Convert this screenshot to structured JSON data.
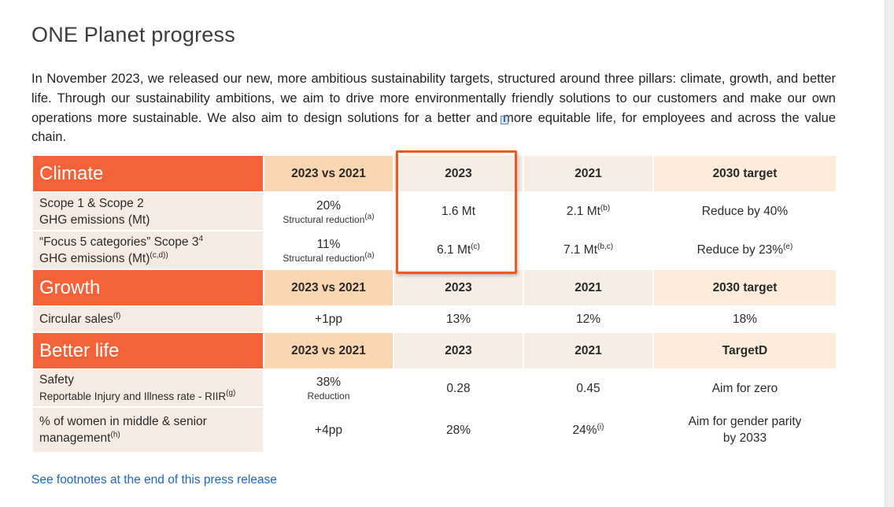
{
  "title": "ONE Planet progress",
  "intro": "In November 2023, we released our new, more ambitious sustainability targets, structured around three pillars: climate, growth, and better life. Through our sustainability ambitions, we aim to drive more environmentally friendly solutions to our customers and make our own operations more sustainable. We also aim to design solutions for a better and more equitable life, for employees and across the value chain.",
  "climate": {
    "section": "Climate",
    "headers": [
      "2023 vs 2021",
      "2023",
      "2021",
      "2030 target"
    ],
    "rows": [
      {
        "label1": "Scope 1 & Scope 2",
        "label2": "GHG emissions (Mt)",
        "label_sup": "",
        "label1_sup": "",
        "change": "20%",
        "change_note": "Structural reduction",
        "change_note_sup": "(a)",
        "y2023": "1.6 Mt",
        "y2023_sup": "",
        "y2021": "2.1 Mt",
        "y2021_sup": "(b)",
        "target": "Reduce by 40%",
        "target_sup": ""
      },
      {
        "label1": "“Focus 5 categories” Scope 3",
        "label1_sup": "4",
        "label2": "GHG emissions (Mt)",
        "label_sup": "(c,d))",
        "change": "11%",
        "change_note": "Structural reduction",
        "change_note_sup": "(a)",
        "y2023": "6.1 Mt",
        "y2023_sup": "(c)",
        "y2021": "7.1 Mt",
        "y2021_sup": "(b,c)",
        "target": "Reduce by 23%",
        "target_sup": "(e)"
      }
    ]
  },
  "growth": {
    "section": "Growth",
    "headers": [
      "2023 vs 2021",
      "2023",
      "2021",
      "2030 target"
    ],
    "rows": [
      {
        "label": "Circular sales",
        "label_sup": "(f)",
        "change": "+1pp",
        "y2023": "13%",
        "y2021": "12%",
        "target": "18%"
      }
    ]
  },
  "better_life": {
    "section": "Better life",
    "headers": [
      "2023 vs 2021",
      "2023",
      "2021",
      "TargetD"
    ],
    "rows": [
      {
        "label1": "Safety",
        "label2": "Reportable Injury and Illness rate - RIIR",
        "label_sup": "(g)",
        "change": "38%",
        "change_note": "Reduction",
        "y2023": "0.28",
        "y2021": "0.45",
        "target": "Aim for zero"
      },
      {
        "label1": "% of women in middle & senior",
        "label2": "management",
        "label_sup": "(h)",
        "change": "+4pp",
        "y2023": "28%",
        "y2021": "24%",
        "y2021_sup": "(i)",
        "target1": "Aim for gender parity",
        "target2": "by 2033"
      }
    ]
  },
  "footnote_link": "See footnotes at the end of this press release",
  "colors": {
    "section_bg": "#f4623a",
    "header_peach": "#fbd6b2",
    "header_light": "#f6eee4",
    "label_bg": "#f5ebe2",
    "highlight_border": "#f05a22",
    "link": "#1e64c8"
  }
}
